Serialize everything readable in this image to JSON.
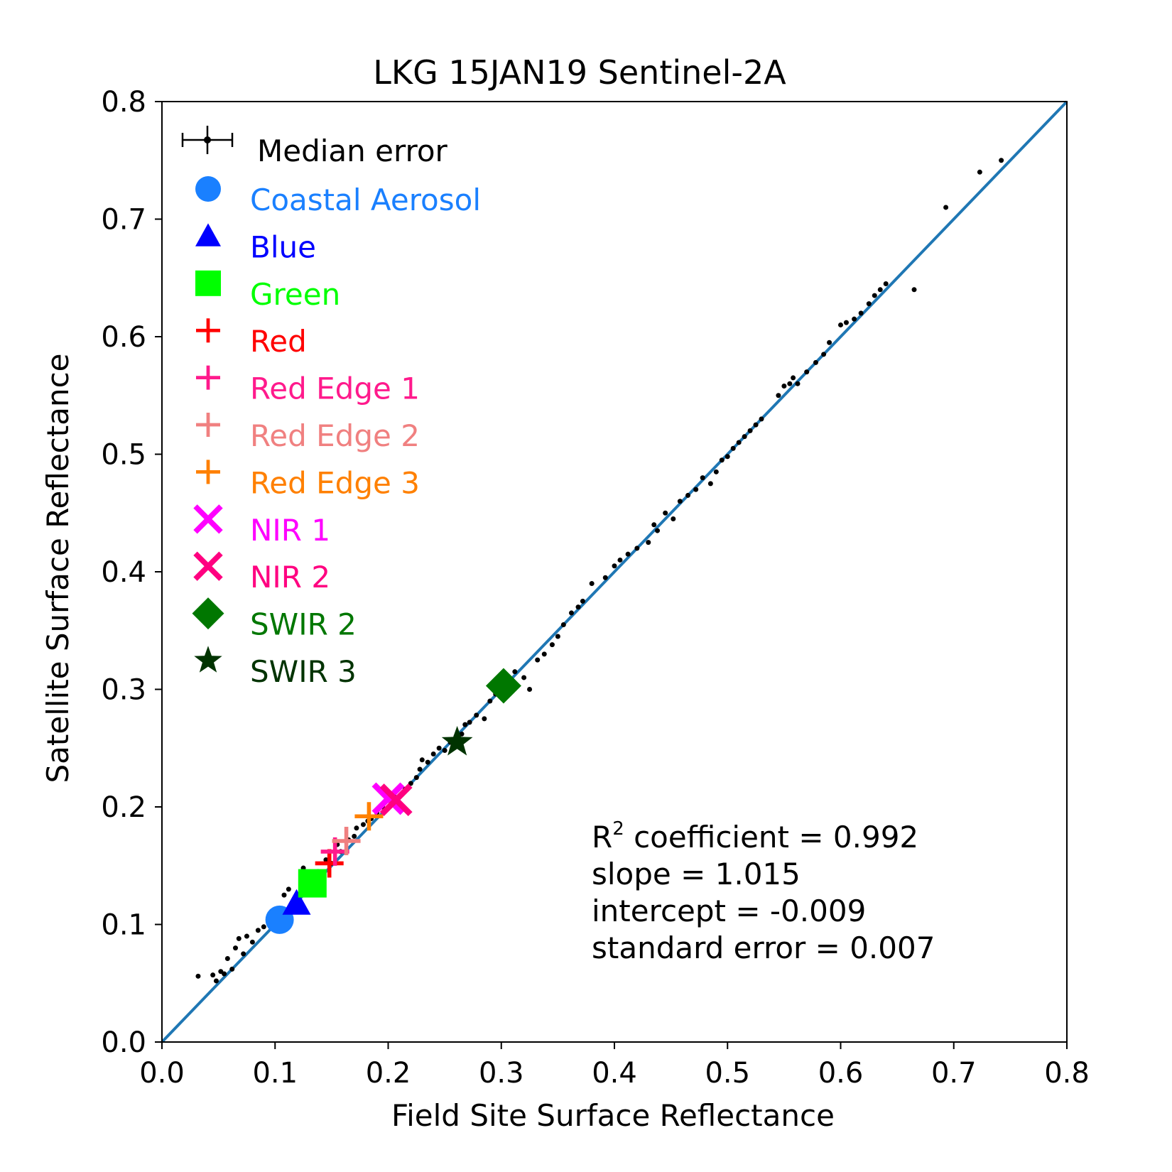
{
  "chart_data": {
    "type": "scatter",
    "title": "LKG 15JAN19 Sentinel-2A",
    "xlabel": "Field Site Surface Reflectance",
    "ylabel": "Satellite Surface Reflectance",
    "xlim": [
      0.0,
      0.8
    ],
    "ylim": [
      0.0,
      0.8
    ],
    "x_ticks": [
      "0.0",
      "0.1",
      "0.2",
      "0.3",
      "0.4",
      "0.5",
      "0.6",
      "0.7",
      "0.8"
    ],
    "y_ticks": [
      "0.0",
      "0.1",
      "0.2",
      "0.3",
      "0.4",
      "0.5",
      "0.6",
      "0.7",
      "0.8"
    ],
    "grid": false,
    "legend_position": "top-left",
    "one_to_one_line": {
      "x": [
        0.0,
        0.8
      ],
      "y": [
        0.0,
        0.8
      ],
      "color": "#1f77b4"
    },
    "legend_error_label": "Median error",
    "series": [
      {
        "name": "Coastal Aerosol",
        "color": "#1a80ff",
        "marker": "circle",
        "x": [
          0.104
        ],
        "y": [
          0.104
        ]
      },
      {
        "name": "Blue",
        "color": "#0000ff",
        "marker": "triangle",
        "x": [
          0.119
        ],
        "y": [
          0.118
        ]
      },
      {
        "name": "Green",
        "color": "#00ff00",
        "marker": "square",
        "x": [
          0.133
        ],
        "y": [
          0.135
        ]
      },
      {
        "name": "Red",
        "color": "#ff0000",
        "marker": "plus",
        "x": [
          0.148
        ],
        "y": [
          0.152
        ]
      },
      {
        "name": "Red Edge 1",
        "color": "#ff1a8c",
        "marker": "plus",
        "x": [
          0.153
        ],
        "y": [
          0.162
        ]
      },
      {
        "name": "Red Edge 2",
        "color": "#f08080",
        "marker": "plus",
        "x": [
          0.163
        ],
        "y": [
          0.171
        ]
      },
      {
        "name": "Red Edge 3",
        "color": "#ff8000",
        "marker": "plus",
        "x": [
          0.183
        ],
        "y": [
          0.192
        ]
      },
      {
        "name": "NIR 1",
        "color": "#ff00ff",
        "marker": "x",
        "x": [
          0.2
        ],
        "y": [
          0.207
        ]
      },
      {
        "name": "NIR 2",
        "color": "#ff0080",
        "marker": "x",
        "x": [
          0.207
        ],
        "y": [
          0.206
        ]
      },
      {
        "name": "SWIR 2",
        "color": "#007700",
        "marker": "diamond",
        "x": [
          0.302
        ],
        "y": [
          0.303
        ]
      },
      {
        "name": "SWIR 3",
        "color": "#003300",
        "marker": "star",
        "x": [
          0.261
        ],
        "y": [
          0.255
        ]
      }
    ],
    "points": {
      "x": [
        0.032,
        0.045,
        0.048,
        0.052,
        0.055,
        0.058,
        0.062,
        0.065,
        0.068,
        0.072,
        0.075,
        0.08,
        0.085,
        0.09,
        0.095,
        0.1,
        0.108,
        0.112,
        0.125,
        0.132,
        0.138,
        0.145,
        0.15,
        0.155,
        0.158,
        0.165,
        0.17,
        0.172,
        0.178,
        0.182,
        0.185,
        0.19,
        0.195,
        0.198,
        0.205,
        0.21,
        0.215,
        0.22,
        0.225,
        0.228,
        0.23,
        0.235,
        0.24,
        0.245,
        0.25,
        0.255,
        0.26,
        0.265,
        0.268,
        0.272,
        0.278,
        0.285,
        0.29,
        0.295,
        0.305,
        0.312,
        0.32,
        0.325,
        0.332,
        0.338,
        0.345,
        0.35,
        0.355,
        0.362,
        0.368,
        0.372,
        0.38,
        0.392,
        0.4,
        0.405,
        0.412,
        0.42,
        0.43,
        0.435,
        0.438,
        0.445,
        0.452,
        0.458,
        0.465,
        0.472,
        0.478,
        0.485,
        0.49,
        0.495,
        0.5,
        0.505,
        0.51,
        0.515,
        0.52,
        0.525,
        0.53,
        0.545,
        0.55,
        0.555,
        0.558,
        0.562,
        0.57,
        0.578,
        0.585,
        0.59,
        0.6,
        0.605,
        0.612,
        0.618,
        0.625,
        0.63,
        0.635,
        0.64,
        0.665,
        0.693,
        0.723,
        0.742
      ],
      "y": [
        0.056,
        0.057,
        0.052,
        0.06,
        0.058,
        0.071,
        0.062,
        0.08,
        0.088,
        0.075,
        0.09,
        0.085,
        0.095,
        0.098,
        0.103,
        0.106,
        0.125,
        0.13,
        0.148,
        0.14,
        0.145,
        0.155,
        0.152,
        0.168,
        0.162,
        0.172,
        0.175,
        0.182,
        0.185,
        0.188,
        0.19,
        0.195,
        0.2,
        0.205,
        0.21,
        0.203,
        0.215,
        0.22,
        0.225,
        0.232,
        0.24,
        0.238,
        0.245,
        0.25,
        0.248,
        0.255,
        0.26,
        0.262,
        0.27,
        0.272,
        0.278,
        0.275,
        0.29,
        0.296,
        0.308,
        0.315,
        0.31,
        0.3,
        0.325,
        0.33,
        0.338,
        0.345,
        0.355,
        0.365,
        0.37,
        0.375,
        0.39,
        0.395,
        0.405,
        0.41,
        0.415,
        0.42,
        0.425,
        0.44,
        0.435,
        0.45,
        0.445,
        0.46,
        0.465,
        0.47,
        0.48,
        0.475,
        0.485,
        0.495,
        0.498,
        0.505,
        0.51,
        0.515,
        0.52,
        0.525,
        0.53,
        0.55,
        0.558,
        0.56,
        0.565,
        0.56,
        0.57,
        0.578,
        0.585,
        0.595,
        0.61,
        0.612,
        0.615,
        0.62,
        0.628,
        0.635,
        0.64,
        0.645,
        0.64,
        0.71,
        0.74,
        0.75
      ]
    },
    "stats": {
      "r2_label": "R",
      "r2_sup": "2",
      "r2_text": " coefficient = 0.992",
      "slope": "slope = 1.015",
      "intercept": "intercept = -0.009",
      "std_error": "standard error = 0.007"
    }
  }
}
